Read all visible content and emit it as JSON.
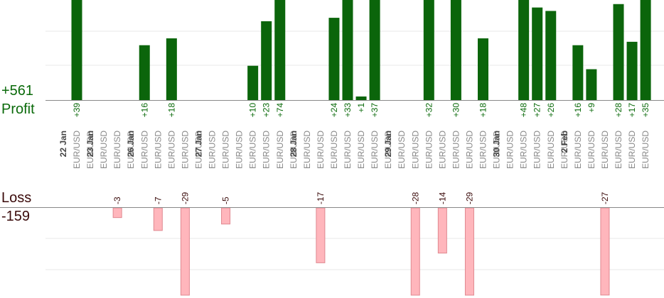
{
  "summary": {
    "profit_total": "+561",
    "profit_label": "Profit",
    "loss_label": "Loss",
    "loss_total": "-159"
  },
  "colors": {
    "profit_bar": "#0b650b",
    "profit_text": "#0a6a0a",
    "loss_bar_fill": "#ffb6bc",
    "loss_bar_stroke": "#e08890",
    "loss_text": "#3a0a0a",
    "axis": "#888888",
    "grid": "#e8e8e8",
    "date_text": "#444444",
    "symbol_text": "#888888"
  },
  "chart_data": {
    "type": "bar",
    "trades": [
      {
        "date": "22 Jan",
        "symbol": "EUR/USD",
        "value": 39
      },
      {
        "symbol": "EUR/USD",
        "value": 0
      },
      {
        "date": "23 Jan",
        "symbol": "EUR/USD",
        "value": 0
      },
      {
        "symbol": "EUR/USD",
        "value": -3
      },
      {
        "symbol": "EUR/USD",
        "value": 0
      },
      {
        "date": "26 Jan",
        "symbol": "EUR/USD",
        "value": 16
      },
      {
        "symbol": "EUR/USD",
        "value": -7
      },
      {
        "symbol": "EUR/USD",
        "value": 18
      },
      {
        "symbol": "EUR/USD",
        "value": -29
      },
      {
        "symbol": "EUR/USD",
        "value": 0
      },
      {
        "date": "27 Jan",
        "symbol": "EUR/USD",
        "value": 0
      },
      {
        "symbol": "EUR/USD",
        "value": -5
      },
      {
        "symbol": "EUR/USD",
        "value": 0
      },
      {
        "symbol": "EUR/USD",
        "value": 10
      },
      {
        "symbol": "EUR/USD",
        "value": 23
      },
      {
        "symbol": "EUR/USD",
        "value": 74
      },
      {
        "symbol": "EUR/USD",
        "value": 0
      },
      {
        "date": "28 Jan",
        "symbol": "EUR/USD",
        "value": 0
      },
      {
        "symbol": "EUR/USD",
        "value": -17
      },
      {
        "symbol": "EUR/USD",
        "value": 24
      },
      {
        "symbol": "EUR/USD",
        "value": 33
      },
      {
        "symbol": "EUR/USD",
        "value": 1
      },
      {
        "symbol": "EUR/USD",
        "value": 37
      },
      {
        "symbol": "EUR/USD",
        "value": 0
      },
      {
        "date": "29 Jan",
        "symbol": "EUR/USD",
        "value": 0
      },
      {
        "symbol": "EUR/USD",
        "value": -28
      },
      {
        "symbol": "EUR/USD",
        "value": 32
      },
      {
        "symbol": "EUR/USD",
        "value": -14
      },
      {
        "symbol": "EUR/USD",
        "value": 30
      },
      {
        "symbol": "EUR/USD",
        "value": -29
      },
      {
        "symbol": "EUR/USD",
        "value": 18
      },
      {
        "symbol": "EUR/USD",
        "value": 0
      },
      {
        "date": "30 Jan",
        "symbol": "EUR/USD",
        "value": 0
      },
      {
        "symbol": "EUR/USD",
        "value": 48
      },
      {
        "symbol": "EUR/USD",
        "value": 27
      },
      {
        "symbol": "EUR/USD",
        "value": 26
      },
      {
        "symbol": "EUR/USD",
        "value": 0
      },
      {
        "date": "2 Feb",
        "symbol": "EUR/USD",
        "value": 16
      },
      {
        "symbol": "EUR/USD",
        "value": 9
      },
      {
        "symbol": "EUR/USD",
        "value": -27
      },
      {
        "symbol": "EUR/USD",
        "value": 28
      },
      {
        "symbol": "EUR/USD",
        "value": 17
      },
      {
        "symbol": "EUR/USD",
        "value": 35
      }
    ],
    "profit_axis_max": 30,
    "loss_axis_max": 25,
    "grid": true
  }
}
